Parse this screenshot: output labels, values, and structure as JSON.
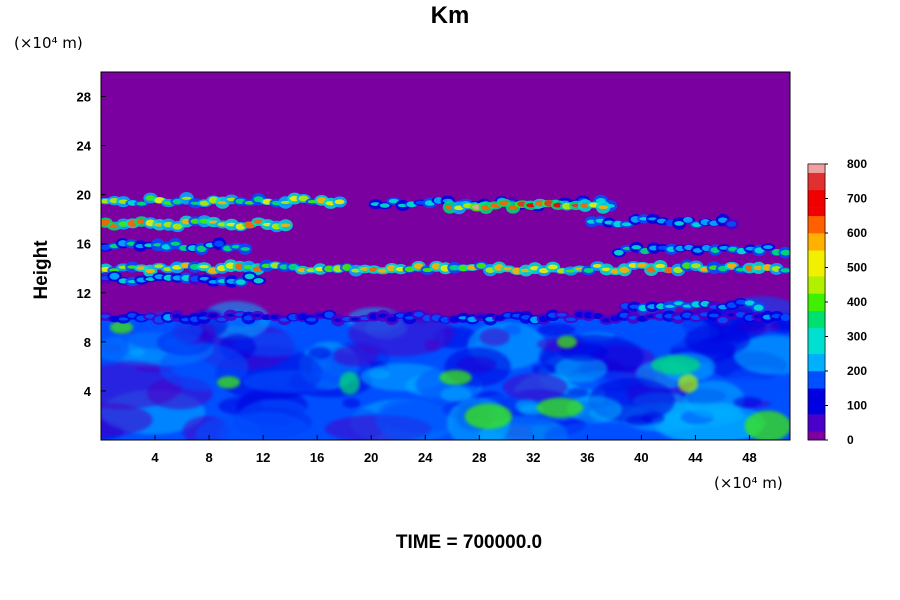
{
  "chart_data": {
    "type": "heatmap",
    "title": "Km",
    "ylabel": "Height",
    "x_unit": "(×10⁴ m)",
    "y_unit": "(×10⁴ m)",
    "x_ticks": [
      4,
      8,
      12,
      16,
      20,
      24,
      28,
      32,
      36,
      40,
      44,
      48
    ],
    "y_ticks": [
      4,
      8,
      12,
      16,
      20,
      24,
      28
    ],
    "xlim": [
      0,
      51
    ],
    "ylim": [
      0,
      30
    ],
    "colorbar_ticks": [
      0,
      100,
      200,
      300,
      400,
      500,
      600,
      700,
      800
    ],
    "colorbar_range": [
      0,
      800
    ],
    "colormap": [
      "#7a00a0",
      "#4a00c8",
      "#0000e0",
      "#0050ff",
      "#00b0ff",
      "#00e0d0",
      "#00e070",
      "#40f000",
      "#b0f000",
      "#f0f000",
      "#ffb000",
      "#ff6000",
      "#f00000",
      "#e03030",
      "#f0a0a0"
    ],
    "background_value": 0,
    "features": [
      {
        "kind": "turbulent_layer",
        "y_range": [
          0,
          10
        ],
        "x_range": [
          0,
          51
        ],
        "typical_value": 150,
        "peak_value": 450
      },
      {
        "kind": "band",
        "y_center": 19.5,
        "x_range": [
          0,
          18
        ],
        "value": 550
      },
      {
        "kind": "band",
        "y_center": 19.3,
        "x_range": [
          20,
          38
        ],
        "value": 300
      },
      {
        "kind": "band",
        "y_center": 19.1,
        "x_range": [
          25.5,
          37.5
        ],
        "value": 800
      },
      {
        "kind": "band",
        "y_center": 17.6,
        "x_range": [
          0,
          14
        ],
        "value": 650
      },
      {
        "kind": "band",
        "y_center": 17.8,
        "x_range": [
          36,
          47
        ],
        "value": 300
      },
      {
        "kind": "band",
        "y_center": 15.8,
        "x_range": [
          0,
          11
        ],
        "value": 350
      },
      {
        "kind": "band",
        "y_center": 15.5,
        "x_range": [
          38,
          51
        ],
        "value": 350
      },
      {
        "kind": "band",
        "y_center": 14.0,
        "x_range": [
          0,
          51
        ],
        "value": 600
      },
      {
        "kind": "band",
        "y_center": 13.1,
        "x_range": [
          0,
          12
        ],
        "value": 300
      },
      {
        "kind": "band",
        "y_center": 11.0,
        "x_range": [
          38.5,
          49
        ],
        "value": 300
      },
      {
        "kind": "band",
        "y_center": 10.0,
        "x_range": [
          0,
          51
        ],
        "value": 200
      }
    ]
  },
  "footer": {
    "time_label": "TIME = 700000.0"
  }
}
